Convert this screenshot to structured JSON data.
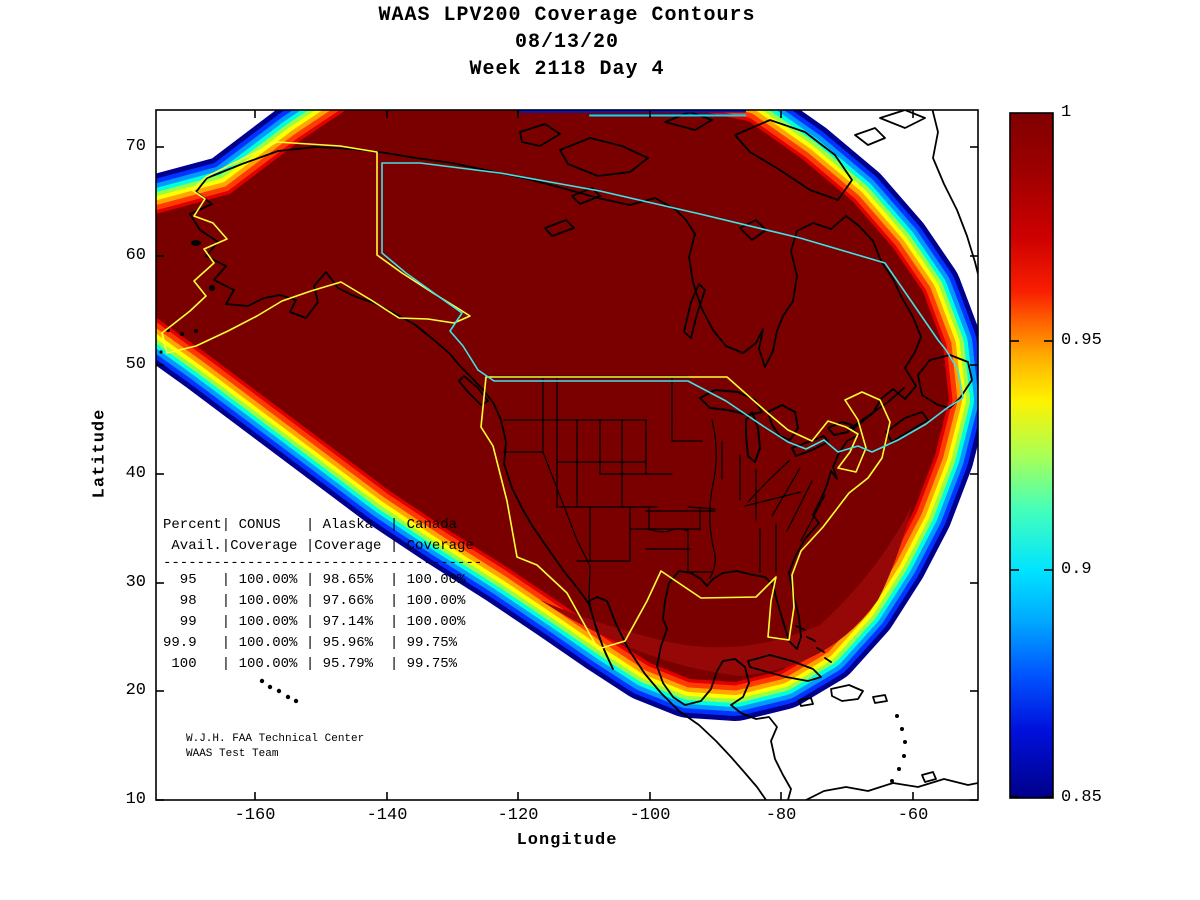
{
  "title": {
    "line1": "WAAS LPV200 Coverage Contours",
    "line2": "08/13/20",
    "line3": "Week 2118 Day 4"
  },
  "axes": {
    "x": {
      "label": "Longitude",
      "ticks": [
        "-160",
        "-140",
        "-120",
        "-100",
        "-80",
        "-60"
      ]
    },
    "y": {
      "label": "Latitude",
      "ticks": [
        "70",
        "60",
        "50",
        "40",
        "30",
        "20",
        "10"
      ]
    }
  },
  "colorbar": {
    "tick_labels": [
      "1",
      "0.95",
      "0.9",
      "0.85"
    ],
    "gradient": [
      {
        "o": 0.0,
        "c": "#7f0000"
      },
      {
        "o": 0.09,
        "c": "#a00000"
      },
      {
        "o": 0.18,
        "c": "#cd0000"
      },
      {
        "o": 0.26,
        "c": "#f81e00"
      },
      {
        "o": 0.31,
        "c": "#ff6a00"
      },
      {
        "o": 0.36,
        "c": "#ffb300"
      },
      {
        "o": 0.42,
        "c": "#fff200"
      },
      {
        "o": 0.5,
        "c": "#aaff55"
      },
      {
        "o": 0.58,
        "c": "#44ffbb"
      },
      {
        "o": 0.667,
        "c": "#00e4ff"
      },
      {
        "o": 0.74,
        "c": "#00aaff"
      },
      {
        "o": 0.82,
        "c": "#0055ff"
      },
      {
        "o": 0.9,
        "c": "#0011dd"
      },
      {
        "o": 1.0,
        "c": "#000089"
      }
    ]
  },
  "availability_table": {
    "columns": [
      [
        "Percent",
        "Avail."
      ],
      [
        "CONUS",
        "Coverage"
      ],
      [
        "Alaska",
        "Coverage"
      ],
      [
        "Canada",
        "Coverage"
      ]
    ],
    "rows": [
      [
        "95",
        "100.00%",
        "98.65%",
        "100.00%"
      ],
      [
        "98",
        "100.00%",
        "97.66%",
        "100.00%"
      ],
      [
        "99",
        "100.00%",
        "97.14%",
        "100.00%"
      ],
      [
        "99.9",
        "100.00%",
        "95.96%",
        "99.75%"
      ],
      [
        "100",
        "100.00%",
        "95.79%",
        "99.75%"
      ]
    ]
  },
  "credit": {
    "line1": "W.J.H. FAA Technical Center",
    "line2": "WAAS Test Team"
  },
  "map_colors": {
    "coverage_fill": "#7a0000",
    "coverage_fill_light": "#960707",
    "bands": [
      "#00008f",
      "#0033ff",
      "#0099ff",
      "#00ffdd",
      "#99ff44",
      "#ffff00",
      "#ffa500",
      "#ff3c00",
      "#e00000"
    ],
    "top_edge_blue": "#0018d8",
    "top_edge_cyan": "#00dff0",
    "service_volume_us": "#ffff33",
    "service_volume_canada": "#3de3e8",
    "coastline": "#000000"
  },
  "chart_data": {
    "type": "heatmap",
    "title": "WAAS LPV200 Coverage Contours",
    "subtitle": [
      "08/13/20",
      "Week 2118 Day 4"
    ],
    "xlabel": "Longitude",
    "ylabel": "Latitude",
    "xlim": [
      -175,
      -50
    ],
    "ylim": [
      10,
      73.5
    ],
    "x_ticks": [
      -160,
      -140,
      -120,
      -100,
      -80,
      -60
    ],
    "y_ticks": [
      70,
      60,
      50,
      40,
      30,
      20,
      10
    ],
    "colorbar": {
      "min": 0.85,
      "max": 1.0,
      "ticks": [
        1,
        0.95,
        0.9,
        0.85
      ],
      "colormap": "jet",
      "position": "right"
    },
    "grid": false,
    "series_note": "Filled contour map over North America: LPV200 availability = 1.0 (dark red) over nearly all of CONUS, Alaska and Canada, with jet-colored contour bands decreasing to 0.85 (dark blue) around the outer edge of the WAAS coverage footprint; yellow outlines = CONUS/Alaska service volumes, cyan outline = Canada service volume.",
    "availability_table": {
      "columns": [
        "Percent Avail.",
        "CONUS Coverage",
        "Alaska Coverage",
        "Canada Coverage"
      ],
      "rows": [
        [
          "95",
          "100.00%",
          "98.65%",
          "100.00%"
        ],
        [
          "98",
          "100.00%",
          "97.66%",
          "100.00%"
        ],
        [
          "99",
          "100.00%",
          "97.14%",
          "100.00%"
        ],
        [
          "99.9",
          "100.00%",
          "95.96%",
          "99.75%"
        ],
        [
          "100",
          "100.00%",
          "95.79%",
          "99.75%"
        ]
      ]
    }
  }
}
